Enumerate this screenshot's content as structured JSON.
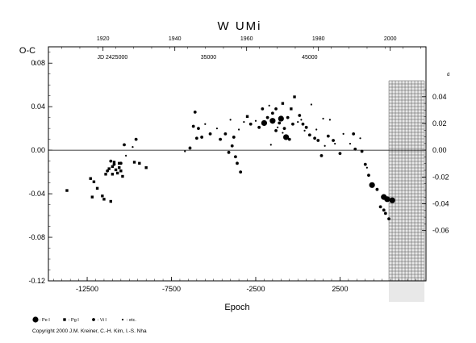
{
  "chart_data": {
    "type": "scatter",
    "title": "W UMi",
    "ylabel": "O-C",
    "xlabel": "Epoch",
    "xlim": [
      -14800,
      7600
    ],
    "ylim": [
      -0.12,
      0.095
    ],
    "x_ticks": [
      -12500,
      -7500,
      -2500,
      2500
    ],
    "x_tick_labels": [
      "-12500",
      "-7500",
      "-2500",
      "2500"
    ],
    "y_ticks": [
      0.08,
      0.04,
      0.0,
      -0.04,
      -0.08,
      -0.12
    ],
    "y_tick_labels": [
      "0.08",
      "0.04",
      "0.00",
      "-0.04",
      "-0.08",
      "-0.12"
    ],
    "y_unit_mark": "d",
    "right_ticks": [
      0.04,
      0.02,
      0.0,
      -0.02,
      -0.04,
      -0.06
    ],
    "right_tick_labels": [
      "0.04",
      "0.02",
      "0.00",
      "-0.02",
      "-0.04",
      "-0.06"
    ],
    "right_unit_mark": "d",
    "top_years": [
      {
        "epoch": -11560,
        "label": "1920"
      },
      {
        "epoch": -7300,
        "label": "1940"
      },
      {
        "epoch": -3040,
        "label": "1960"
      },
      {
        "epoch": 1220,
        "label": "1980"
      },
      {
        "epoch": 5480,
        "label": "2000"
      }
    ],
    "jd_labels": [
      {
        "epoch": -11000,
        "label": "JD 2425000"
      },
      {
        "epoch": -5300,
        "label": "35000"
      },
      {
        "epoch": 700,
        "label": "45000"
      }
    ],
    "shaded_region_start_epoch": 5400,
    "zero_line": 0.0,
    "legend": [
      {
        "symbol": "circle-large",
        "label": ": Pe I"
      },
      {
        "symbol": "square",
        "label": ": Pg I"
      },
      {
        "symbol": "circle",
        "label": ": Vi I"
      },
      {
        "symbol": "dot",
        "label": ": etc."
      }
    ],
    "series": [
      {
        "name": "Pe I",
        "symbol": "circle-large",
        "points": [
          [
            -2000,
            0.025
          ],
          [
            -1500,
            0.027
          ],
          [
            -1000,
            0.029
          ],
          [
            -700,
            0.012
          ],
          [
            4400,
            -0.032
          ],
          [
            5100,
            -0.043
          ],
          [
            5300,
            -0.045
          ],
          [
            5600,
            -0.046
          ]
        ]
      },
      {
        "name": "Pg I",
        "symbol": "square",
        "points": [
          [
            -13700,
            -0.037
          ],
          [
            -12300,
            -0.026
          ],
          [
            -12100,
            -0.029
          ],
          [
            -11900,
            -0.035
          ],
          [
            -12200,
            -0.043
          ],
          [
            -11600,
            -0.042
          ],
          [
            -11500,
            -0.045
          ],
          [
            -11100,
            -0.047
          ],
          [
            -11400,
            -0.022
          ],
          [
            -11200,
            -0.017
          ],
          [
            -11000,
            -0.015
          ],
          [
            -10800,
            -0.018
          ],
          [
            -10600,
            -0.016
          ],
          [
            -10500,
            -0.019
          ],
          [
            -10400,
            -0.024
          ],
          [
            -11000,
            -0.022
          ],
          [
            -10700,
            -0.021
          ],
          [
            -10900,
            -0.011
          ],
          [
            -10600,
            -0.012
          ],
          [
            -9700,
            -0.011
          ],
          [
            -9400,
            -0.012
          ],
          [
            -9000,
            -0.016
          ],
          [
            -3000,
            0.031
          ],
          [
            -900,
            0.043
          ],
          [
            -200,
            0.049
          ],
          [
            -400,
            0.038
          ]
        ]
      },
      {
        "name": "Vi I",
        "symbol": "circle",
        "points": [
          [
            -11300,
            -0.019
          ],
          [
            -11100,
            -0.01
          ],
          [
            -10900,
            -0.013
          ],
          [
            -10500,
            -0.012
          ],
          [
            -10300,
            0.005
          ],
          [
            -9600,
            0.01
          ],
          [
            -6100,
            0.035
          ],
          [
            -6200,
            0.022
          ],
          [
            -5900,
            0.02
          ],
          [
            -6000,
            0.011
          ],
          [
            -5700,
            0.012
          ],
          [
            -6400,
            0.002
          ],
          [
            -5200,
            0.015
          ],
          [
            -4600,
            0.01
          ],
          [
            -4300,
            0.015
          ],
          [
            -3800,
            0.012
          ],
          [
            -3900,
            0.004
          ],
          [
            -4100,
            -0.002
          ],
          [
            -3700,
            -0.006
          ],
          [
            -3600,
            -0.012
          ],
          [
            -3400,
            -0.02
          ],
          [
            -2800,
            0.024
          ],
          [
            -2300,
            0.021
          ],
          [
            -2100,
            0.038
          ],
          [
            -1800,
            0.03
          ],
          [
            -1500,
            0.034
          ],
          [
            -1300,
            0.038
          ],
          [
            -1100,
            0.025
          ],
          [
            -1300,
            0.018
          ],
          [
            -800,
            0.02
          ],
          [
            -600,
            0.03
          ],
          [
            -500,
            0.01
          ],
          [
            -300,
            0.024
          ],
          [
            100,
            0.032
          ],
          [
            300,
            0.024
          ],
          [
            500,
            0.021
          ],
          [
            700,
            0.014
          ],
          [
            1000,
            0.011
          ],
          [
            1200,
            0.009
          ],
          [
            1400,
            -0.005
          ],
          [
            1800,
            0.013
          ],
          [
            2100,
            0.009
          ],
          [
            2500,
            -0.003
          ],
          [
            3300,
            0.015
          ],
          [
            3400,
            0.001
          ],
          [
            3800,
            -0.001
          ],
          [
            4000,
            -0.013
          ],
          [
            4200,
            -0.023
          ],
          [
            4700,
            -0.036
          ],
          [
            4900,
            -0.052
          ],
          [
            5100,
            -0.055
          ],
          [
            5200,
            -0.058
          ],
          [
            5400,
            -0.063
          ]
        ]
      },
      {
        "name": "etc.",
        "symbol": "dot",
        "points": [
          [
            -10200,
            -0.005
          ],
          [
            -9800,
            0.003
          ],
          [
            -6700,
            -0.001
          ],
          [
            -5500,
            0.024
          ],
          [
            -4800,
            0.02
          ],
          [
            -4000,
            0.028
          ],
          [
            -3500,
            0.019
          ],
          [
            -3200,
            0.026
          ],
          [
            -2500,
            0.027
          ],
          [
            -1700,
            0.041
          ],
          [
            -1200,
            0.021
          ],
          [
            -900,
            0.016
          ],
          [
            -1600,
            0.005
          ],
          [
            -400,
            0.038
          ],
          [
            0,
            0.026
          ],
          [
            200,
            0.028
          ],
          [
            400,
            0.018
          ],
          [
            800,
            0.042
          ],
          [
            1100,
            0.019
          ],
          [
            1500,
            0.029
          ],
          [
            1600,
            0.004
          ],
          [
            1900,
            0.028
          ],
          [
            2200,
            0.006
          ],
          [
            2700,
            0.015
          ],
          [
            3100,
            0.006
          ],
          [
            3700,
            0.011
          ],
          [
            4100,
            -0.016
          ]
        ]
      }
    ]
  },
  "copyright": "Copyright 2000 J.M. Kreiner, C.-H. Kim, I.-S. Nha"
}
